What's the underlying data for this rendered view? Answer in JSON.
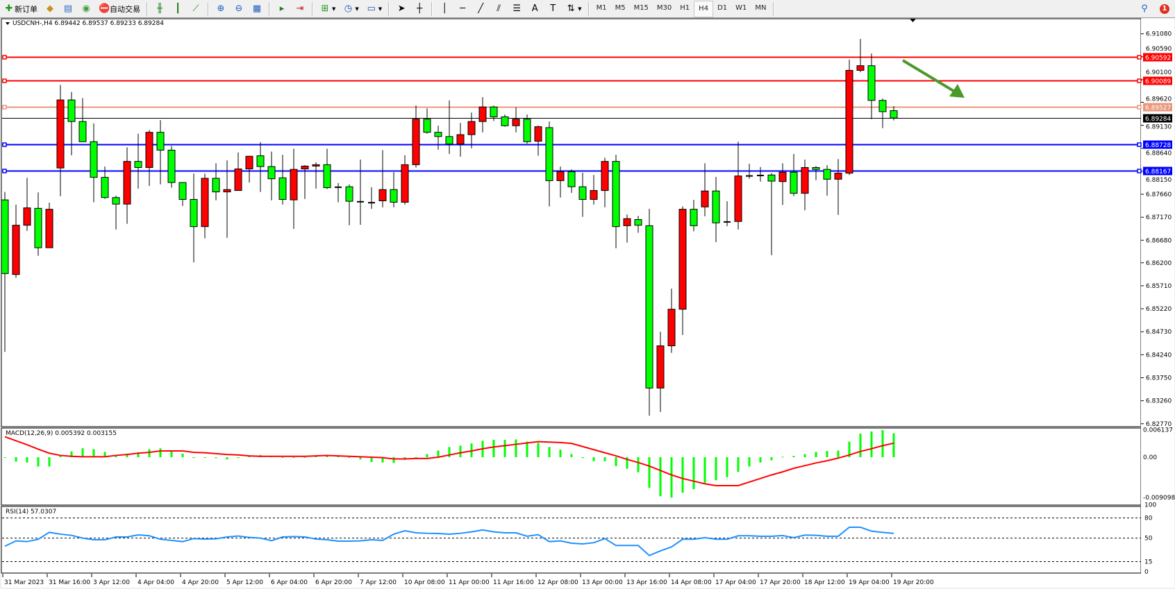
{
  "toolbar": {
    "new_order_label": "新订单",
    "auto_trading_label": "自动交易",
    "icons": [
      "new-order-icon",
      "market-watch-icon",
      "data-window-icon",
      "signals-icon",
      "auto-trading-icon",
      "bar-chart-icon",
      "candlestick-icon",
      "line-chart-icon",
      "zoom-in-icon",
      "zoom-out-icon",
      "tile-windows-icon",
      "autoscroll-icon",
      "chart-shift-icon",
      "indicators-icon",
      "periods-icon",
      "templates-icon",
      "cursor-icon",
      "crosshair-icon",
      "vertical-line-icon",
      "horizontal-line-icon",
      "trendline-icon",
      "fibonacci-icon",
      "fibo-channel-icon",
      "text-icon",
      "text-label-icon",
      "arrows-icon"
    ],
    "timeframes": [
      "M1",
      "M5",
      "M15",
      "M30",
      "H1",
      "H4",
      "D1",
      "W1",
      "MN"
    ],
    "active_timeframe": "H4",
    "notification_count": "1"
  },
  "chart": {
    "title": "USDCNH-,H4  6.89442 6.89537 6.89233 6.89284",
    "price_ticks": [
      "6.91080",
      "6.90590",
      "6.90100",
      "6.89620",
      "6.89130",
      "6.88640",
      "6.88150",
      "6.87660",
      "6.87170",
      "6.86680",
      "6.86200",
      "6.85710",
      "6.85220",
      "6.84730",
      "6.84240",
      "6.83750",
      "6.83260",
      "6.82770"
    ],
    "levels": [
      {
        "price": "6.90592",
        "color": "#ff0000"
      },
      {
        "price": "6.90089",
        "color": "#ff0000"
      },
      {
        "price": "6.89527",
        "color": "#e9967a"
      },
      {
        "price": "6.89284",
        "color": "#000000"
      },
      {
        "price": "6.88728",
        "color": "#0000ff"
      },
      {
        "price": "6.88167",
        "color": "#0000ff"
      }
    ],
    "bull_color": "#ff0000",
    "bear_color": "#00ff00",
    "arrow_color": "#4a9a2a",
    "arrow_direction": "down-right"
  },
  "chart_data": {
    "type": "candlestick",
    "symbol": "USDCNH-",
    "timeframe": "H4",
    "ylim": [
      6.8277,
      6.9108
    ],
    "candles": [
      [
        6.8754,
        6.8771,
        6.843,
        6.8597
      ],
      [
        6.8595,
        6.8744,
        6.8588,
        6.87
      ],
      [
        6.87,
        6.8801,
        6.8688,
        6.8737
      ],
      [
        6.8736,
        6.877,
        6.8635,
        6.8652
      ],
      [
        6.8652,
        6.8748,
        6.8652,
        6.8734
      ],
      [
        6.8822,
        6.8999,
        6.8762,
        6.8967
      ],
      [
        6.8967,
        6.8984,
        6.8849,
        6.8921
      ],
      [
        6.8921,
        6.8971,
        6.8878,
        6.8878
      ],
      [
        6.8878,
        6.8917,
        6.8749,
        6.8802
      ],
      [
        6.8802,
        6.8825,
        6.8756,
        6.8759
      ],
      [
        6.8759,
        6.8763,
        6.8691,
        6.8745
      ],
      [
        6.8745,
        6.8866,
        6.8703,
        6.8836
      ],
      [
        6.8836,
        6.8895,
        6.8778,
        6.8823
      ],
      [
        6.8823,
        6.8903,
        6.8784,
        6.8898
      ],
      [
        6.8898,
        6.8924,
        6.8787,
        6.886
      ],
      [
        6.886,
        6.8869,
        6.878,
        6.8791
      ],
      [
        6.8791,
        6.8791,
        6.8741,
        6.8755
      ],
      [
        6.8755,
        6.881,
        6.8621,
        6.8697
      ],
      [
        6.8697,
        6.881,
        6.8672,
        6.88
      ],
      [
        6.88,
        6.8832,
        6.8753,
        6.8771
      ],
      [
        6.8771,
        6.8838,
        6.8673,
        6.8776
      ],
      [
        6.8774,
        6.8855,
        6.8774,
        6.882
      ],
      [
        6.882,
        6.8848,
        6.8791,
        6.8847
      ],
      [
        6.8848,
        6.8877,
        6.8771,
        6.8825
      ],
      [
        6.8825,
        6.8857,
        6.8753,
        6.8799
      ],
      [
        6.8801,
        6.885,
        6.8744,
        6.8755
      ],
      [
        6.8754,
        6.8863,
        6.8692,
        6.8819
      ],
      [
        6.882,
        6.8828,
        6.8756,
        6.8826
      ],
      [
        6.8826,
        6.8834,
        6.8778,
        6.8829
      ],
      [
        6.8829,
        6.8863,
        6.8777,
        6.878
      ],
      [
        6.8781,
        6.879,
        6.8749,
        6.8781
      ],
      [
        6.8782,
        6.8787,
        6.87,
        6.8751
      ],
      [
        6.875,
        6.884,
        6.8701,
        6.875
      ],
      [
        6.8748,
        6.8781,
        6.8735,
        6.8748
      ],
      [
        6.8752,
        6.886,
        6.8738,
        6.8776
      ],
      [
        6.8776,
        6.8813,
        6.8738,
        6.8749
      ],
      [
        6.8749,
        6.8849,
        6.8744,
        6.8829
      ],
      [
        6.8829,
        6.8955,
        6.8823,
        6.8926
      ],
      [
        6.8926,
        6.8949,
        6.8895,
        6.8898
      ],
      [
        6.8898,
        6.8912,
        6.8861,
        6.8889
      ],
      [
        6.8889,
        6.8966,
        6.8852,
        6.8873
      ],
      [
        6.8873,
        6.8918,
        6.8846,
        6.8893
      ],
      [
        6.8893,
        6.894,
        6.8864,
        6.8921
      ],
      [
        6.8921,
        6.8973,
        6.8898,
        6.8952
      ],
      [
        6.8952,
        6.8955,
        6.8922,
        6.8931
      ],
      [
        6.8931,
        6.8936,
        6.891,
        6.8912
      ],
      [
        6.8912,
        6.8951,
        6.8898,
        6.8926
      ],
      [
        6.8926,
        6.8936,
        6.8874,
        6.8878
      ],
      [
        6.8879,
        6.8912,
        6.8848,
        6.891
      ],
      [
        6.8908,
        6.8921,
        6.874,
        6.8795
      ],
      [
        6.8795,
        6.8825,
        6.8759,
        6.8814
      ],
      [
        6.8814,
        6.8819,
        6.8769,
        6.8782
      ],
      [
        6.8782,
        6.8812,
        6.8718,
        6.8755
      ],
      [
        6.8755,
        6.8807,
        6.8744,
        6.8774
      ],
      [
        6.8774,
        6.8844,
        6.8738,
        6.8836
      ],
      [
        6.8836,
        6.885,
        6.8651,
        6.8697
      ],
      [
        6.8699,
        6.8723,
        6.8663,
        6.8714
      ],
      [
        6.8712,
        6.872,
        6.8684,
        6.87
      ],
      [
        6.8699,
        6.8735,
        6.8294,
        6.8353
      ],
      [
        6.8353,
        6.8473,
        6.8302,
        6.8443
      ],
      [
        6.8443,
        6.8565,
        6.8428,
        6.8521
      ],
      [
        6.8521,
        6.874,
        6.8466,
        6.8734
      ],
      [
        6.8734,
        6.8754,
        6.8687,
        6.8699
      ],
      [
        6.8739,
        6.8832,
        6.8719,
        6.8773
      ],
      [
        6.8773,
        6.8803,
        6.8664,
        6.8705
      ],
      [
        6.8707,
        6.8751,
        6.8698,
        6.8707
      ],
      [
        6.8708,
        6.8878,
        6.8691,
        6.8805
      ],
      [
        6.8805,
        6.8831,
        6.8799,
        6.8805
      ],
      [
        6.8806,
        6.8824,
        6.8793,
        6.8806
      ],
      [
        6.8807,
        6.8811,
        6.8636,
        6.8794
      ],
      [
        6.8793,
        6.8832,
        6.8743,
        6.8813
      ],
      [
        6.8813,
        6.8852,
        6.8762,
        6.8768
      ],
      [
        6.8768,
        6.884,
        6.8732,
        6.8823
      ],
      [
        6.8823,
        6.8826,
        6.8796,
        6.8819
      ],
      [
        6.8819,
        6.8828,
        6.8763,
        6.8798
      ],
      [
        6.8798,
        6.8841,
        6.8722,
        6.8811
      ],
      [
        6.8811,
        6.9053,
        6.8807,
        6.903
      ],
      [
        6.903,
        6.9097,
        6.9026,
        6.904
      ],
      [
        6.904,
        6.9066,
        6.8926,
        6.8966
      ],
      [
        6.8966,
        6.897,
        6.8907,
        6.8942
      ],
      [
        6.89442,
        6.89537,
        6.89233,
        6.89284
      ]
    ],
    "time_labels": [
      "31 Mar 2023",
      "31 Mar 16:00",
      "3 Apr 12:00",
      "4 Apr 04:00",
      "4 Apr 20:00",
      "5 Apr 12:00",
      "6 Apr 04:00",
      "6 Apr 20:00",
      "7 Apr 12:00",
      "10 Apr 08:00",
      "11 Apr 00:00",
      "11 Apr 16:00",
      "12 Apr 08:00",
      "13 Apr 00:00",
      "13 Apr 16:00",
      "14 Apr 08:00",
      "17 Apr 04:00",
      "17 Apr 20:00",
      "18 Apr 12:00",
      "19 Apr 04:00",
      "19 Apr 20:00"
    ],
    "macd": {
      "label": "MACD(12,26,9) 0.005392 0.003155",
      "axis_labels": [
        "0.006137",
        "0.00",
        "-0.009098"
      ],
      "ylim": [
        -0.009098,
        0.006137
      ],
      "histogram_color": "#00ff00",
      "signal_color": "#ff0000",
      "histogram": [
        0,
        -0.001,
        -0.0012,
        -0.0021,
        -0.0021,
        0.0004,
        0.0013,
        0.002,
        0.0018,
        0.0012,
        0.0005,
        0.0008,
        0.0011,
        0.0018,
        0.002,
        0.0013,
        0.0008,
        -0.0002,
        -0.0001,
        -0.0002,
        -0.0005,
        -0.0002,
        0.0003,
        0.0005,
        0.0002,
        0,
        0,
        0,
        0.0004,
        0.0005,
        0.0002,
        0,
        -0.0005,
        -0.0011,
        -0.0012,
        -0.0013,
        -0.0006,
        -0.0001,
        0.0007,
        0.0015,
        0.0023,
        0.0026,
        0.0031,
        0.0037,
        0.0039,
        0.0039,
        0.004,
        0.0035,
        0.0032,
        0.0023,
        0.0017,
        0.0007,
        -0.0002,
        -0.0009,
        -0.0009,
        -0.002,
        -0.0026,
        -0.0034,
        -0.0069,
        -0.0088,
        -0.0091,
        -0.008,
        -0.0072,
        -0.0058,
        -0.0052,
        -0.0045,
        -0.0033,
        -0.0021,
        -0.0012,
        -0.0007,
        0.0001,
        0.0003,
        0.0007,
        0.0012,
        0.0014,
        0.0015,
        0.0035,
        0.0053,
        0.0058,
        0.0061,
        0.005392
      ],
      "signal": [
        0.0046,
        0.0037,
        0.0028,
        0.0018,
        0.0009,
        0.0004,
        0.0002,
        0.0001,
        0.0001,
        0.0001,
        0.0004,
        0.0006,
        0.0009,
        0.0011,
        0.0014,
        0.0014,
        0.0014,
        0.0011,
        0.001,
        0.0008,
        0.0006,
        0.0005,
        0.0003,
        0.0002,
        0.0002,
        0.0002,
        0.0002,
        0.0002,
        0.0003,
        0.0004,
        0.0003,
        0.0002,
        0.0001,
        0.0,
        -0.0001,
        -0.0004,
        -0.0004,
        -0.0003,
        -0.0003,
        0.0,
        0.0005,
        0.001,
        0.0014,
        0.0019,
        0.0023,
        0.0026,
        0.0029,
        0.0032,
        0.0035,
        0.0034,
        0.0033,
        0.0031,
        0.0024,
        0.0017,
        0.001,
        0.0003,
        -0.0005,
        -0.0012,
        -0.002,
        -0.003,
        -0.004,
        -0.0048,
        -0.0054,
        -0.006,
        -0.0064,
        -0.0064,
        -0.0064,
        -0.0056,
        -0.0048,
        -0.004,
        -0.0033,
        -0.0025,
        -0.0019,
        -0.0013,
        -0.0008,
        -0.0002,
        0.0005,
        0.0013,
        0.0019,
        0.0026,
        0.003155
      ]
    },
    "rsi": {
      "label": "RSI(14) 57.0307",
      "axis_labels": [
        "100",
        "80",
        "50",
        "15",
        "0"
      ],
      "levels": [
        80,
        50,
        15
      ],
      "ylim": [
        0,
        100
      ],
      "color": "#1e90ff",
      "values": [
        37.9,
        45.9,
        44.8,
        48.3,
        58.6,
        55.9,
        54.1,
        50,
        47.6,
        47.6,
        51.7,
        51.7,
        54.8,
        53.5,
        48.3,
        46.6,
        44.8,
        49.3,
        48.6,
        49,
        51.7,
        53.1,
        51,
        50,
        46.2,
        51.7,
        52.4,
        51.7,
        48.6,
        47.6,
        45.5,
        45.5,
        45.9,
        47.6,
        46.6,
        55.9,
        61,
        57.9,
        57.2,
        56.9,
        55.9,
        57.2,
        59.3,
        62.1,
        59.3,
        57.9,
        57.9,
        52.8,
        55.2,
        44.8,
        45.9,
        42.4,
        41.4,
        43.1,
        49.3,
        39,
        39,
        39,
        24.1,
        31,
        36.9,
        48.3,
        48.3,
        50.7,
        48.3,
        48.3,
        53.5,
        53.5,
        52.8,
        52.8,
        53.8,
        50.7,
        54.5,
        54.1,
        52.8,
        52.8,
        66.2,
        66.2,
        60.4,
        58.6,
        57.0307
      ]
    }
  }
}
